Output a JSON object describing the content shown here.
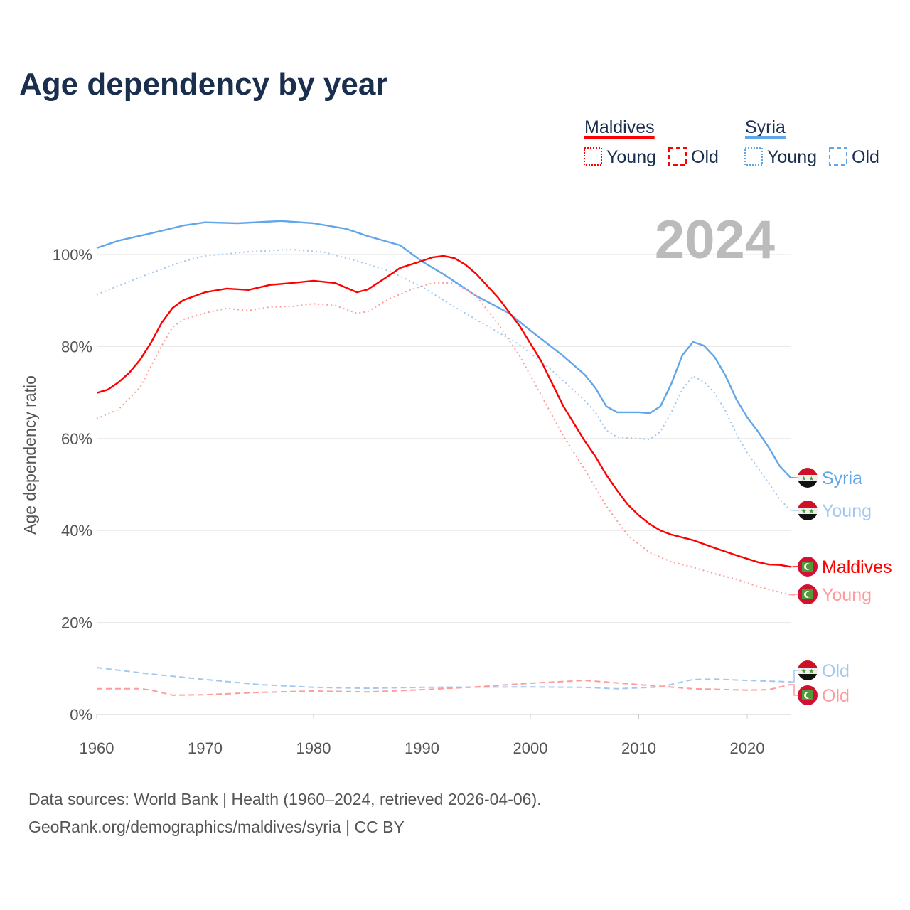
{
  "title": "Age dependency by year",
  "year_label": "2024",
  "sources": [
    "Data sources: World Bank | Health (1960–2024, retrieved 2026-04-06).",
    "GeoRank.org/demographics/maldives/syria | CC BY"
  ],
  "legend": {
    "groups": [
      {
        "name": "Maldives",
        "color": "#ff0000",
        "items": [
          "Young",
          "Old"
        ]
      },
      {
        "name": "Syria",
        "color": "#62a6ea",
        "items": [
          "Young",
          "Old"
        ]
      }
    ]
  },
  "end_labels": {
    "syria_total": "Syria",
    "syria_young": "Young",
    "maldives_total": "Maldives",
    "maldives_young": "Young",
    "syria_old": "Old",
    "maldives_old": "Old"
  },
  "chart_data": {
    "type": "line",
    "title": "Age dependency by year",
    "xlabel": "",
    "ylabel": "Age dependency ratio",
    "xlim": [
      1960,
      2024
    ],
    "ylim": [
      0,
      110
    ],
    "xticks": [
      1960,
      1970,
      1980,
      1990,
      2000,
      2010,
      2020
    ],
    "yticks": [
      0,
      20,
      40,
      60,
      80,
      100
    ],
    "ytick_labels": [
      "0%",
      "20%",
      "40%",
      "60%",
      "80%",
      "100%"
    ],
    "grid": true,
    "series": [
      {
        "name": "Syria",
        "key": "syria_total",
        "country": "syria",
        "color": "#62a6ea",
        "style": "solid",
        "x": [
          1960,
          1962,
          1965,
          1968,
          1970,
          1973,
          1977,
          1980,
          1983,
          1985,
          1988,
          1990,
          1992,
          1995,
          1998,
          2000,
          2003,
          2005,
          2006,
          2007,
          2008,
          2010,
          2011,
          2012,
          2013,
          2014,
          2015,
          2016,
          2017,
          2018,
          2019,
          2020,
          2021,
          2022,
          2023,
          2024
        ],
        "y": [
          101.4,
          103,
          104.6,
          106.3,
          107,
          106.8,
          107.3,
          106.8,
          105.6,
          104,
          102,
          98.5,
          95.7,
          91,
          87.3,
          83.5,
          78,
          73.9,
          71,
          67,
          65.7,
          65.7,
          65.5,
          67,
          71.9,
          78,
          81,
          80.2,
          77.7,
          73.7,
          68.5,
          64.6,
          61.5,
          58,
          54,
          51.5
        ]
      },
      {
        "name": "Syria Young",
        "key": "syria_young",
        "country": "syria",
        "color": "#a3c8f0",
        "style": "dotted",
        "x": [
          1960,
          1963,
          1965,
          1968,
          1970,
          1974,
          1978,
          1981,
          1984,
          1987,
          1990,
          1993,
          1996,
          1999,
          2002,
          2005,
          2006,
          2007,
          2008,
          2010,
          2011,
          2012,
          2013,
          2014,
          2015,
          2016,
          2017,
          2018,
          2019,
          2020,
          2021,
          2022,
          2023,
          2024
        ],
        "y": [
          91.3,
          94.1,
          96,
          98.5,
          99.7,
          100.6,
          101.1,
          100.5,
          98.6,
          96.4,
          93,
          88.6,
          84.5,
          80.4,
          74.8,
          68.3,
          65.7,
          61.8,
          60.3,
          60,
          59.8,
          61.5,
          65.7,
          70.6,
          73.6,
          72.3,
          69.9,
          66,
          61,
          56.9,
          53.6,
          50.2,
          46.8,
          44.4
        ]
      },
      {
        "name": "Syria Old",
        "key": "syria_old",
        "country": "syria",
        "color": "#a3c8f0",
        "style": "dashed",
        "x": [
          1960,
          1965,
          1970,
          1975,
          1980,
          1985,
          1990,
          2000,
          2005,
          2008,
          2012,
          2015,
          2017,
          2020,
          2024
        ],
        "y": [
          10.2,
          8.8,
          7.6,
          6.5,
          5.9,
          5.7,
          5.9,
          6,
          5.9,
          5.6,
          6,
          7.6,
          7.7,
          7.4,
          7.1
        ]
      },
      {
        "name": "Maldives",
        "key": "maldives_total",
        "country": "maldives",
        "color": "#ff0000",
        "style": "solid",
        "x": [
          1960,
          1961,
          1962,
          1963,
          1964,
          1965,
          1966,
          1967,
          1968,
          1970,
          1972,
          1974,
          1976,
          1978,
          1980,
          1982,
          1984,
          1985,
          1987,
          1988,
          1990,
          1991,
          1992,
          1993,
          1994,
          1995,
          1997,
          1999,
          2001,
          2003,
          2005,
          2006,
          2007,
          2008,
          2009,
          2010,
          2011,
          2012,
          2013,
          2015,
          2017,
          2019,
          2021,
          2022,
          2023,
          2024
        ],
        "y": [
          69.9,
          70.6,
          72.2,
          74.3,
          77.1,
          80.8,
          85.2,
          88.4,
          90.1,
          91.8,
          92.6,
          92.3,
          93.4,
          93.8,
          94.3,
          93.8,
          91.8,
          92.4,
          95.5,
          97.1,
          98.6,
          99.4,
          99.7,
          99.2,
          97.8,
          95.8,
          90.7,
          84.5,
          76.8,
          67.2,
          59.5,
          56.1,
          52.1,
          48.7,
          45.6,
          43.3,
          41.4,
          40,
          39.1,
          37.9,
          36.2,
          34.6,
          33.1,
          32.6,
          32.5,
          32.1
        ]
      },
      {
        "name": "Maldives Young",
        "key": "maldives_young",
        "country": "maldives",
        "color": "#ff9b9b",
        "style": "dotted",
        "x": [
          1960,
          1962,
          1964,
          1966,
          1967,
          1968,
          1970,
          1972,
          1974,
          1976,
          1978,
          1980,
          1982,
          1984,
          1985,
          1987,
          1989,
          1991,
          1993,
          1995,
          1997,
          1999,
          2001,
          2003,
          2005,
          2007,
          2009,
          2011,
          2013,
          2015,
          2017,
          2019,
          2021,
          2023,
          2024
        ],
        "y": [
          64.3,
          66.3,
          71.1,
          80.2,
          84.2,
          85.9,
          87.3,
          88.3,
          87.8,
          88.6,
          88.7,
          89.3,
          88.9,
          87.2,
          87.6,
          90.4,
          92.4,
          93.8,
          93.8,
          91,
          85,
          78,
          69.4,
          60.7,
          53.3,
          45.3,
          38.9,
          35.2,
          33.2,
          32,
          30.6,
          29.4,
          27.8,
          26.6,
          26
        ]
      },
      {
        "name": "Maldives Old",
        "key": "maldives_old",
        "country": "maldives",
        "color": "#ff9b9b",
        "style": "dashed",
        "x": [
          1960,
          1964,
          1965,
          1967,
          1970,
          1975,
          1980,
          1985,
          1990,
          1995,
          2000,
          2005,
          2010,
          2015,
          2020,
          2022,
          2024
        ],
        "y": [
          5.6,
          5.6,
          5.3,
          4.2,
          4.3,
          4.8,
          5.1,
          4.9,
          5.4,
          6,
          6.8,
          7.4,
          6.5,
          5.6,
          5.3,
          5.4,
          6.5
        ]
      }
    ]
  }
}
